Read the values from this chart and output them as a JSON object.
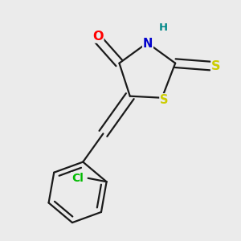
{
  "background_color": "#ebebeb",
  "bond_color": "#1a1a1a",
  "atom_colors": {
    "O": "#ff0000",
    "N": "#0000cc",
    "S_thioxo": "#cccc00",
    "S_ring": "#cccc00",
    "Cl": "#00bb00",
    "H": "#008888",
    "C": "#1a1a1a"
  },
  "line_width": 1.6,
  "font_size": 10.5
}
